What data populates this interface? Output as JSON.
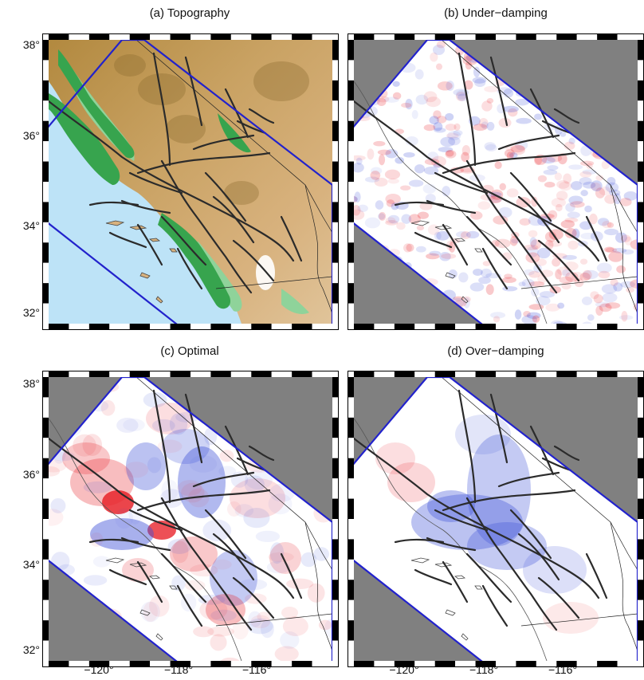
{
  "panels": [
    {
      "id": "a",
      "title": "(a) Topography",
      "type": "topography"
    },
    {
      "id": "b",
      "title": "(b) Under−damping",
      "type": "under"
    },
    {
      "id": "c",
      "title": "(c) Optimal",
      "type": "optimal"
    },
    {
      "id": "d",
      "title": "(d) Over−damping",
      "type": "over"
    }
  ],
  "y_ticks": [
    "38°",
    "36°",
    "34°",
    "32°"
  ],
  "x_ticks": [
    "−120°",
    "−118°",
    "−116°"
  ],
  "colors": {
    "ocean": "#bde3f7",
    "outside": "#808080",
    "outline": "#2222cc",
    "fault": "#2b2b2b",
    "positive": "#e8242c",
    "negative": "#3d4fd8"
  }
}
